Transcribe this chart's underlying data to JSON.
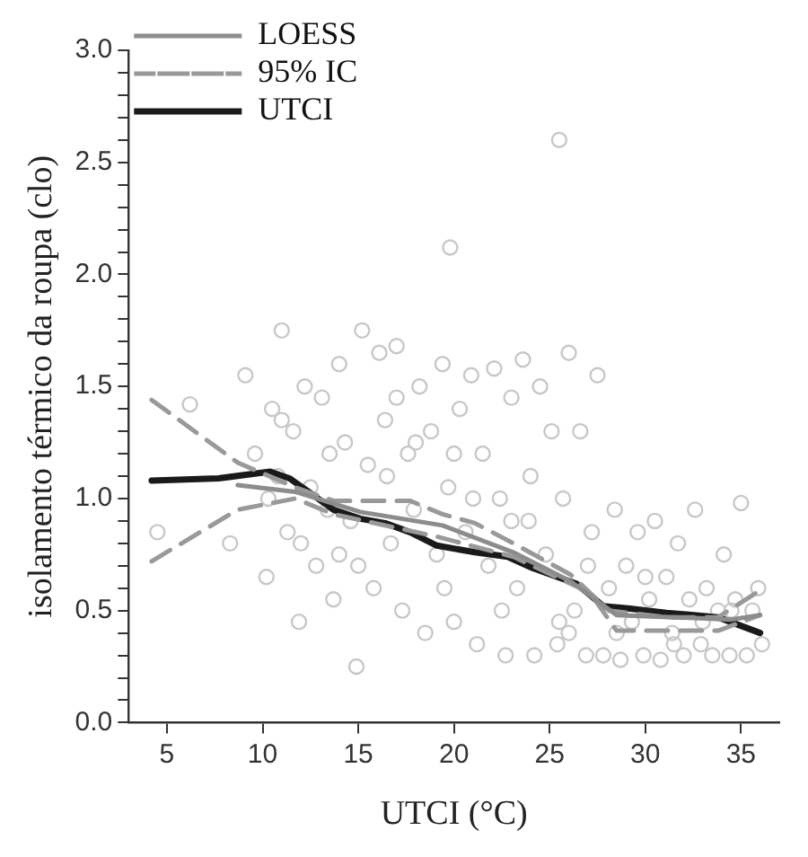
{
  "chart_data": {
    "type": "line",
    "xlabel": "UTCI (°C)",
    "ylabel": "isolamento térmico da roupa (clo)",
    "xlim": [
      3,
      37
    ],
    "xticks": [
      5,
      10,
      15,
      20,
      25,
      30,
      35
    ],
    "ylim": [
      0,
      3
    ],
    "yticks": [
      {
        "value": 0,
        "label": "0.0"
      },
      {
        "value": 0.1,
        "label": null
      },
      {
        "value": 0.2,
        "label": null
      },
      {
        "value": 0.3,
        "label": null
      },
      {
        "value": 0.4,
        "label": null
      },
      {
        "value": 0.5,
        "label": "0.5"
      },
      {
        "value": 0.6,
        "label": null
      },
      {
        "value": 0.7,
        "label": null
      },
      {
        "value": 0.8,
        "label": null
      },
      {
        "value": 0.9,
        "label": null
      },
      {
        "value": 1,
        "label": "1.0"
      },
      {
        "value": 1.1,
        "label": null
      },
      {
        "value": 1.2,
        "label": null
      },
      {
        "value": 1.3,
        "label": null
      },
      {
        "value": 1.4,
        "label": null
      },
      {
        "value": 1.5,
        "label": "1.5"
      },
      {
        "value": 1.6,
        "label": null
      },
      {
        "value": 1.7,
        "label": null
      },
      {
        "value": 1.8,
        "label": null
      },
      {
        "value": 1.9,
        "label": null
      },
      {
        "value": 2,
        "label": "2.0"
      },
      {
        "value": 2.1,
        "label": null
      },
      {
        "value": 2.2,
        "label": null
      },
      {
        "value": 2.3,
        "label": null
      },
      {
        "value": 2.4,
        "label": null
      },
      {
        "value": 2.5,
        "label": "2.5"
      },
      {
        "value": 2.6,
        "label": null
      },
      {
        "value": 2.7,
        "label": null
      },
      {
        "value": 2.8,
        "label": null
      },
      {
        "value": 2.9,
        "label": null
      },
      {
        "value": 3,
        "label": "3.0"
      }
    ],
    "grid": false,
    "legend": "top left",
    "series": [
      {
        "type": "scatter",
        "color": "#c8c8c8",
        "marker": "circle",
        "x": [
          4.5,
          6.2,
          8.3,
          9.1,
          9.6,
          10.2,
          10.5,
          10.8,
          11.0,
          11.3,
          11.6,
          11.9,
          12.2,
          12.5,
          12.8,
          13.1,
          13.4,
          13.7,
          14.0,
          14.3,
          14.6,
          14.9,
          15.2,
          15.5,
          15.8,
          16.1,
          16.4,
          16.7,
          17.0,
          17.3,
          17.6,
          17.9,
          18.2,
          18.5,
          18.8,
          19.1,
          19.4,
          19.7,
          19.8,
          20.0,
          20.3,
          20.6,
          20.9,
          21.2,
          21.5,
          21.8,
          22.1,
          22.4,
          22.7,
          23.0,
          23.3,
          23.6,
          23.9,
          24.2,
          24.5,
          24.8,
          25.1,
          25.4,
          25.5,
          25.7,
          26.0,
          26.3,
          26.6,
          26.9,
          27.2,
          27.5,
          27.8,
          28.1,
          28.4,
          28.7,
          29.0,
          29.3,
          29.6,
          29.9,
          30.2,
          30.5,
          30.8,
          31.1,
          31.4,
          31.7,
          32.0,
          32.3,
          32.6,
          32.9,
          33.2,
          33.5,
          33.8,
          34.1,
          34.4,
          34.7,
          35.0,
          35.3,
          35.6,
          35.9,
          36.1,
          10.3,
          12.0,
          13.5,
          15.0,
          16.5,
          18.0,
          19.5,
          21.0,
          22.5,
          24.0,
          25.5,
          27.0,
          28.5,
          30.0,
          31.5,
          33.0,
          34.5,
          11.0,
          14.0,
          17.0,
          20.0,
          23.0,
          26.0
        ],
        "values": [
          0.85,
          1.42,
          0.8,
          1.55,
          1.2,
          0.65,
          1.4,
          1.1,
          1.75,
          0.85,
          1.3,
          0.45,
          1.5,
          1.05,
          0.7,
          1.45,
          0.95,
          0.55,
          1.6,
          1.25,
          0.9,
          0.25,
          1.75,
          1.15,
          0.6,
          1.65,
          1.35,
          0.8,
          1.68,
          0.5,
          1.2,
          0.95,
          1.5,
          0.4,
          1.3,
          0.75,
          1.6,
          1.05,
          2.12,
          0.45,
          1.4,
          0.85,
          1.55,
          0.35,
          1.2,
          0.7,
          1.58,
          1.0,
          0.3,
          1.45,
          0.6,
          1.62,
          0.9,
          0.3,
          1.5,
          0.75,
          1.3,
          0.35,
          2.6,
          1.0,
          1.65,
          0.5,
          1.3,
          0.3,
          0.85,
          1.55,
          0.3,
          0.6,
          0.95,
          0.28,
          0.7,
          0.45,
          0.85,
          0.3,
          0.55,
          0.9,
          0.28,
          0.65,
          0.4,
          0.8,
          0.3,
          0.55,
          0.95,
          0.35,
          0.6,
          0.3,
          0.5,
          0.75,
          0.3,
          0.55,
          0.98,
          0.3,
          0.5,
          0.6,
          0.35,
          1.0,
          0.8,
          1.2,
          0.7,
          1.1,
          1.25,
          0.6,
          1.0,
          0.5,
          1.1,
          0.45,
          0.7,
          0.4,
          0.65,
          0.35,
          0.45,
          0.5,
          1.35,
          0.75,
          1.45,
          1.2,
          0.9,
          0.4
        ]
      },
      {
        "name": "LOESS",
        "color": "#8c8c8c",
        "line_style": "solid",
        "x": [
          8.7,
          11.7,
          15.1,
          19.4,
          23.1,
          26.1,
          28.5,
          34.5,
          36
        ],
        "values": [
          1.06,
          1.03,
          0.94,
          0.88,
          0.76,
          0.63,
          0.48,
          0.46,
          0.48
        ]
      },
      {
        "name": "95% IC",
        "color": "#999999",
        "line_style": "dashed",
        "x": [
          4.2,
          8.7,
          11.7,
          13.7,
          17.7,
          19.4,
          21.1,
          23.1,
          26.1,
          28.1,
          31.1,
          33.8,
          36
        ],
        "values": [
          1.44,
          1.16,
          1.05,
          0.99,
          0.99,
          0.93,
          0.89,
          0.8,
          0.66,
          0.5,
          0.47,
          0.47,
          0.59
        ]
      },
      {
        "color": "#999999",
        "line_style": "dashed",
        "x": [
          4.2,
          8.7,
          11.7,
          13.7,
          19.1,
          23.1,
          27.1,
          28.5,
          33.8,
          36
        ],
        "values": [
          0.72,
          0.95,
          1.0,
          0.93,
          0.83,
          0.74,
          0.58,
          0.41,
          0.41,
          0.48
        ]
      },
      {
        "name": "UTCI",
        "color": "#1a1a1a",
        "line_style": "solid",
        "x": [
          4.2,
          7.7,
          10.4,
          11.4,
          12.4,
          13.7,
          15.1,
          16.4,
          17.7,
          19.1,
          21.1,
          22.8,
          24.1,
          25.4,
          26.4,
          27.8,
          29.1,
          31.1,
          33.8,
          36
        ],
        "values": [
          1.08,
          1.09,
          1.12,
          1.09,
          1.03,
          0.95,
          0.91,
          0.89,
          0.85,
          0.79,
          0.76,
          0.74,
          0.69,
          0.65,
          0.62,
          0.52,
          0.51,
          0.49,
          0.47,
          0.4
        ]
      }
    ]
  }
}
